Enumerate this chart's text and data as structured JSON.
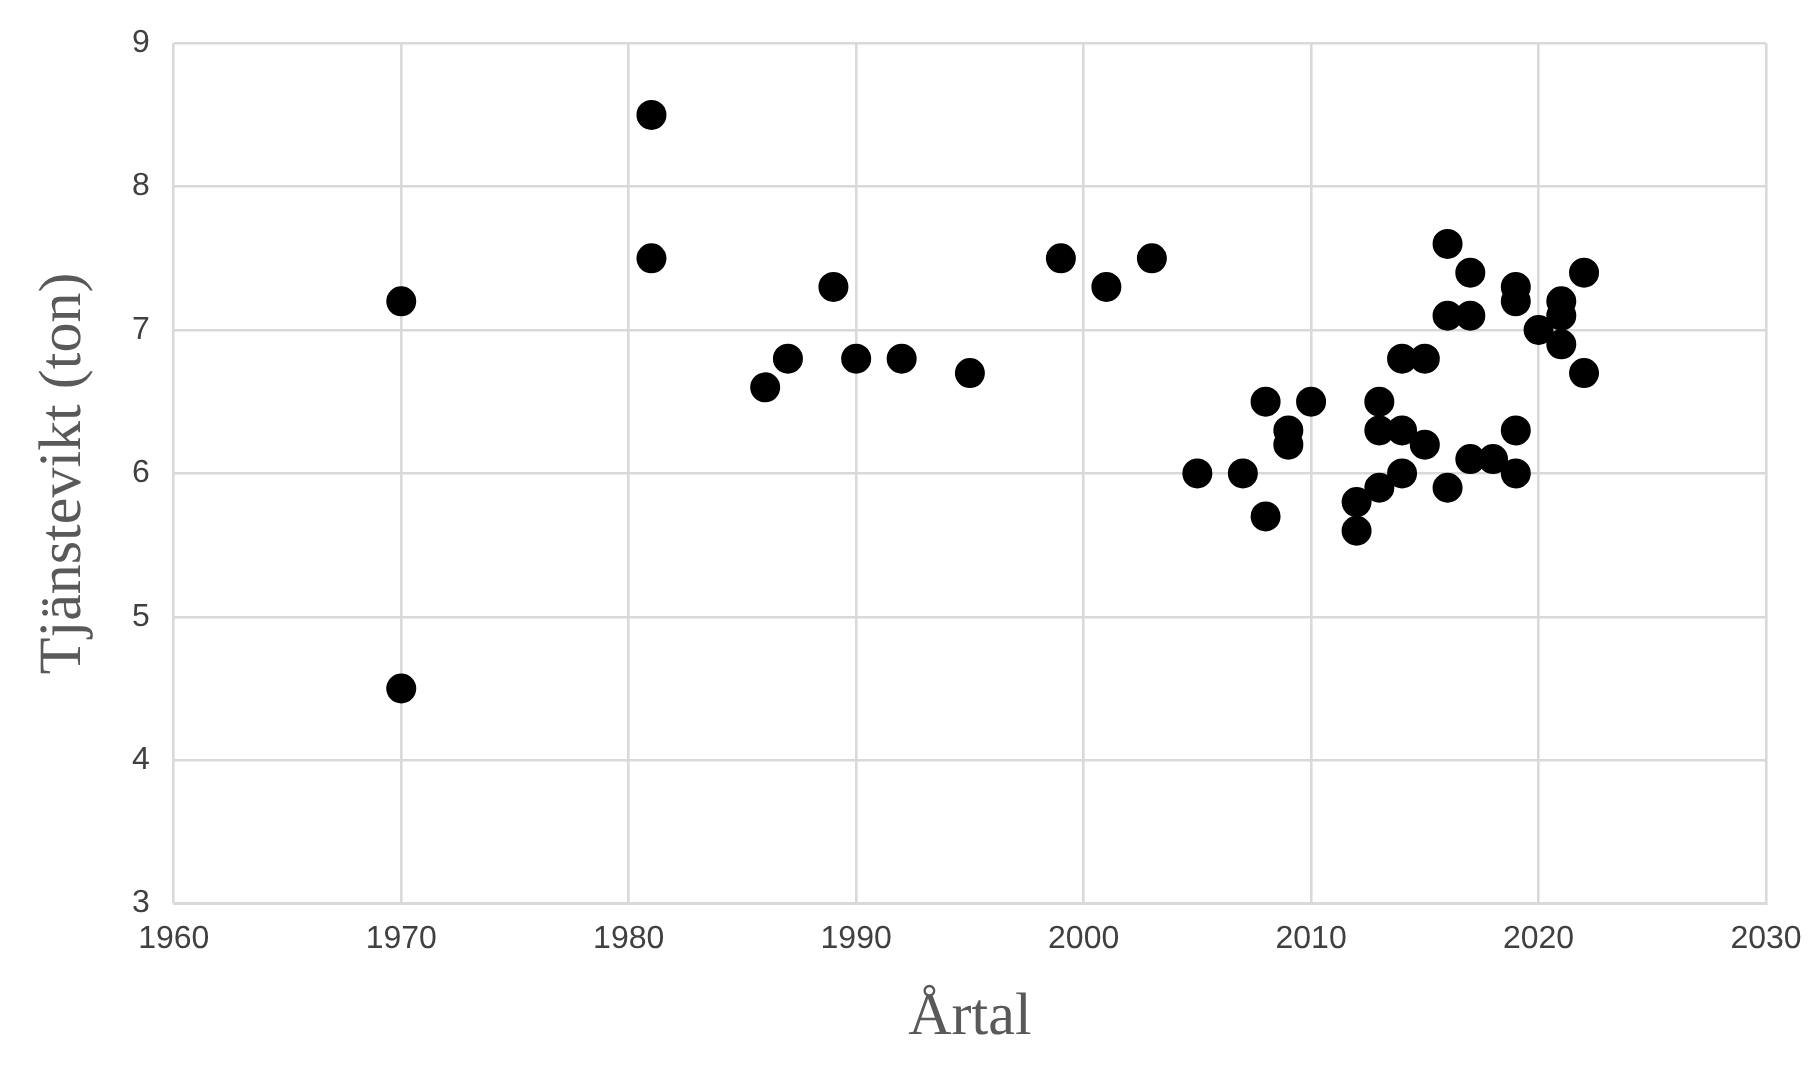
{
  "chart_data": {
    "type": "scatter",
    "xlabel": "Årtal",
    "ylabel": "Tjänstevikt (ton)",
    "x": [
      1970,
      1970,
      1981,
      1981,
      1986,
      1987,
      1989,
      1990,
      1992,
      1995,
      1999,
      2001,
      2003,
      2005,
      2007,
      2008,
      2008,
      2009,
      2009,
      2010,
      2012,
      2012,
      2013,
      2013,
      2013,
      2014,
      2014,
      2014,
      2015,
      2015,
      2016,
      2016,
      2016,
      2017,
      2017,
      2017,
      2018,
      2019,
      2019,
      2019,
      2019,
      2020,
      2021,
      2021,
      2021,
      2022,
      2022
    ],
    "series": [
      {
        "color": "#000000",
        "values": [
          7.2,
          4.5,
          8.5,
          7.5,
          6.6,
          6.8,
          7.3,
          6.8,
          6.8,
          6.7,
          7.5,
          7.3,
          7.5,
          6.0,
          6.0,
          6.5,
          5.7,
          6.3,
          6.2,
          6.5,
          5.8,
          5.6,
          6.5,
          6.3,
          5.9,
          6.8,
          6.3,
          6.0,
          6.8,
          6.2,
          7.6,
          7.1,
          5.9,
          7.4,
          7.1,
          6.1,
          6.1,
          7.3,
          7.2,
          6.3,
          6.0,
          7.0,
          7.2,
          7.1,
          6.9,
          7.4,
          6.7
        ]
      }
    ],
    "xlim": [
      1960,
      2030
    ],
    "xticks": [
      1960,
      1970,
      1980,
      1990,
      2000,
      2010,
      2020,
      2030
    ],
    "ylim": [
      3,
      9
    ],
    "yticks": [
      3,
      4,
      5,
      6,
      7,
      8,
      9
    ],
    "grid": true,
    "legend": false,
    "marker": "circle"
  }
}
